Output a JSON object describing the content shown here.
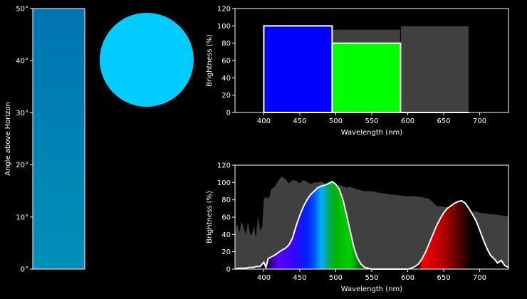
{
  "colors": {
    "background": "#000000",
    "axis": "#ffffff",
    "sky_gradient_top": "#0074b0",
    "sky_gradient_bottom": "#0090b8",
    "sky_swatch": "#00ccff",
    "reference_spectrum": "#404040",
    "blue_band": "#0000ff",
    "green_band": "#00ff00"
  },
  "chart_data": [
    {
      "type": "bar",
      "id": "angle-bar",
      "ylabel": "Angle above Horizon",
      "ylim": [
        0,
        50
      ],
      "yticks": [
        {
          "value": 0,
          "label": "0°"
        },
        {
          "value": 10,
          "label": "10°"
        },
        {
          "value": 20,
          "label": "20°"
        },
        {
          "value": 30,
          "label": "30°"
        },
        {
          "value": 40,
          "label": "40°"
        },
        {
          "value": 50,
          "label": "50°"
        }
      ],
      "bar": {
        "from": 0,
        "to": 50,
        "color_bottom": "#0090b8",
        "color_top": "#0074b0"
      }
    },
    {
      "type": "swatch",
      "id": "sky-color",
      "shape": "circle",
      "color": "#00ccff"
    },
    {
      "type": "bar",
      "id": "band-brightness",
      "xlabel": "Wavelength (nm)",
      "ylabel": "Brightness (%)",
      "xlim": [
        360,
        740
      ],
      "ylim": [
        0,
        120
      ],
      "xticks": [
        400,
        450,
        500,
        550,
        600,
        650,
        700
      ],
      "yticks": [
        0,
        20,
        40,
        60,
        80,
        100,
        120
      ],
      "reference_bars": [
        {
          "x0": 400,
          "x1": 495,
          "value": 100
        },
        {
          "x0": 495,
          "x1": 590,
          "value": 96
        },
        {
          "x0": 590,
          "x1": 685,
          "value": 100
        }
      ],
      "bands": [
        {
          "x0": 400,
          "x1": 495,
          "value": 100,
          "color": "#0000ff"
        },
        {
          "x0": 495,
          "x1": 590,
          "value": 80,
          "color": "#00ff00"
        },
        {
          "x0": 590,
          "x1": 685,
          "value": 0,
          "color": "#ff0000"
        }
      ]
    },
    {
      "type": "area",
      "id": "spectrum",
      "xlabel": "Wavelength (nm)",
      "ylabel": "Brightness (%)",
      "xlim": [
        360,
        740
      ],
      "ylim": [
        0,
        120
      ],
      "xticks": [
        400,
        450,
        500,
        550,
        600,
        650,
        700
      ],
      "yticks": [
        0,
        20,
        40,
        60,
        80,
        100,
        120
      ],
      "reference": {
        "x": [
          360,
          363,
          366,
          369,
          372,
          375,
          378,
          380,
          382,
          384,
          386,
          389,
          392,
          395,
          398,
          400,
          402,
          405,
          408,
          410,
          415,
          420,
          425,
          430,
          435,
          440,
          445,
          450,
          455,
          460,
          465,
          470,
          475,
          480,
          485,
          490,
          495,
          500,
          505,
          510,
          515,
          520,
          530,
          540,
          550,
          560,
          570,
          580,
          590,
          600,
          610,
          620,
          630,
          640,
          650,
          660,
          670,
          680,
          690,
          700,
          710,
          720,
          730,
          740
        ],
        "y": [
          40,
          52,
          42,
          55,
          48,
          40,
          54,
          45,
          38,
          42,
          50,
          36,
          62,
          44,
          50,
          80,
          83,
          82,
          83,
          92,
          95,
          102,
          107,
          104,
          99,
          103,
          102,
          99,
          103,
          101,
          98,
          100,
          100,
          101,
          99,
          98,
          96,
          95,
          97,
          96,
          94,
          95,
          92,
          90,
          90,
          88,
          87,
          86,
          85,
          84,
          84,
          83,
          81,
          73,
          72,
          71,
          70,
          69,
          67,
          65,
          64,
          63,
          62,
          61
        ]
      },
      "spectrum": {
        "x": [
          360,
          365,
          370,
          375,
          380,
          385,
          390,
          395,
          400,
          403,
          406,
          410,
          415,
          420,
          425,
          430,
          435,
          440,
          445,
          450,
          455,
          460,
          465,
          470,
          475,
          480,
          485,
          490,
          495,
          500,
          505,
          510,
          515,
          520,
          525,
          530,
          535,
          540,
          545,
          550,
          555,
          560,
          570,
          580,
          590,
          600,
          605,
          610,
          615,
          620,
          625,
          630,
          635,
          640,
          645,
          650,
          655,
          660,
          665,
          670,
          675,
          680,
          685,
          690,
          695,
          700,
          705,
          710,
          715,
          720,
          725,
          730,
          735,
          740
        ],
        "y": [
          0,
          1,
          1,
          1,
          2,
          2,
          3,
          3,
          8,
          2,
          12,
          14,
          16,
          19,
          22,
          24,
          28,
          36,
          50,
          62,
          72,
          80,
          86,
          90,
          94,
          96,
          97,
          99,
          101,
          98,
          92,
          80,
          63,
          44,
          26,
          13,
          6,
          2,
          1,
          0,
          0,
          0,
          0,
          0,
          0,
          0,
          1,
          3,
          6,
          12,
          20,
          30,
          40,
          50,
          58,
          65,
          70,
          73,
          76,
          78,
          79,
          76,
          70,
          63,
          56,
          45,
          34,
          24,
          16,
          12,
          7,
          10,
          4,
          2
        ]
      },
      "gradient_stops": [
        {
          "nm": 400,
          "color": "#140014"
        },
        {
          "nm": 420,
          "color": "#5500ff"
        },
        {
          "nm": 440,
          "color": "#3b00ff"
        },
        {
          "nm": 460,
          "color": "#0022ff"
        },
        {
          "nm": 470,
          "color": "#0055ff"
        },
        {
          "nm": 480,
          "color": "#00b0ff"
        },
        {
          "nm": 490,
          "color": "#00aa66"
        },
        {
          "nm": 500,
          "color": "#00b400"
        },
        {
          "nm": 520,
          "color": "#00d000"
        },
        {
          "nm": 540,
          "color": "#004400"
        },
        {
          "nm": 555,
          "color": "#000000"
        },
        {
          "nm": 615,
          "color": "#000000"
        },
        {
          "nm": 620,
          "color": "#ff0000"
        },
        {
          "nm": 650,
          "color": "#b00000"
        },
        {
          "nm": 690,
          "color": "#000000"
        },
        {
          "nm": 740,
          "color": "#000000"
        }
      ]
    }
  ]
}
